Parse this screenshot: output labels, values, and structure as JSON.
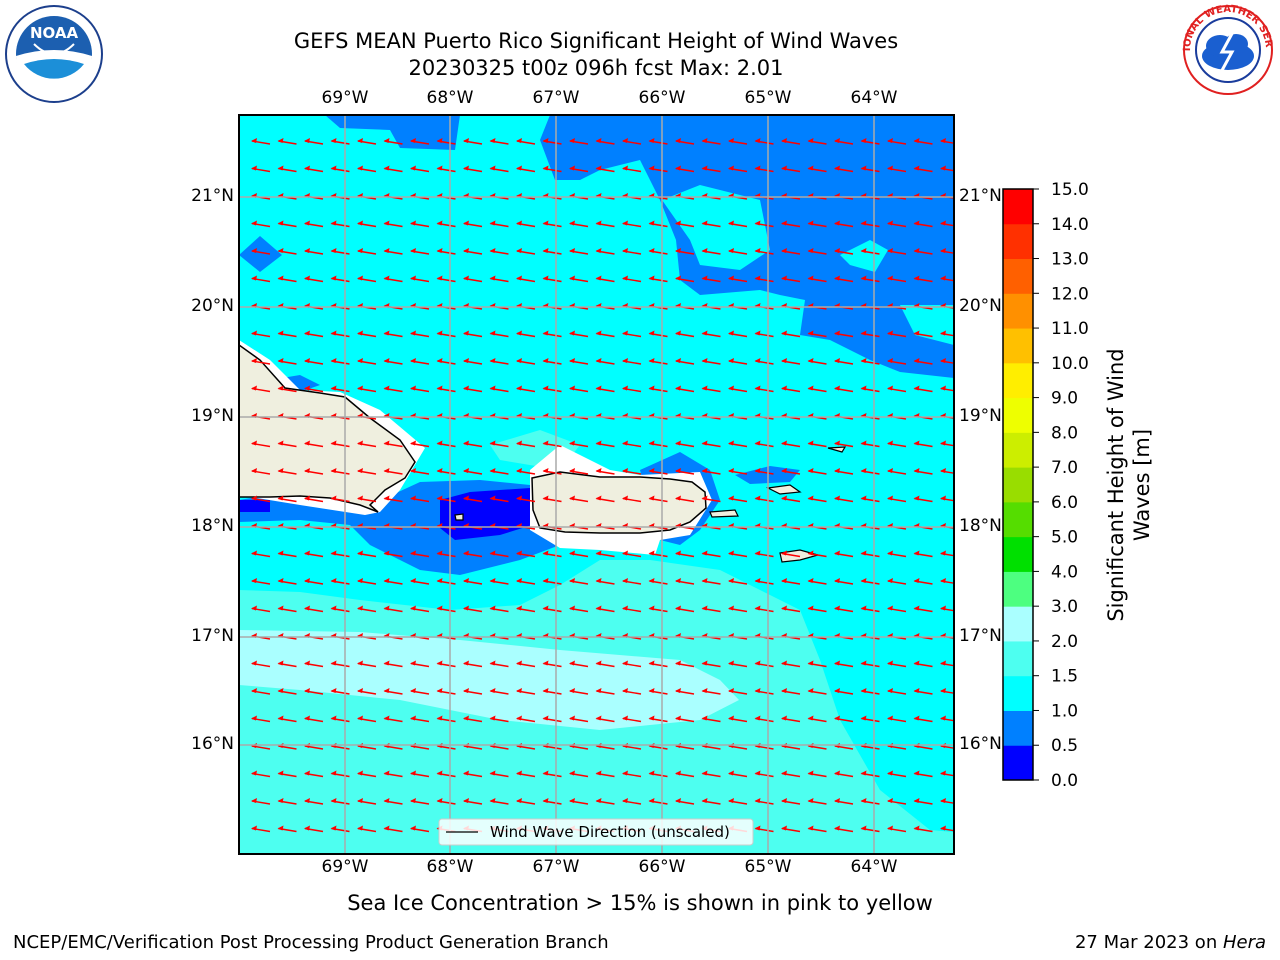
{
  "title_line1": "GEFS MEAN Puerto Rico Significant Height of Wind Waves",
  "title_line2": "20230325 t00z 096h fcst   Max: 2.01",
  "map": {
    "lon_labels": [
      "69°W",
      "68°W",
      "67°W",
      "66°W",
      "65°W",
      "64°W"
    ],
    "lat_labels": [
      "21°N",
      "20°N",
      "19°N",
      "18°N",
      "17°N",
      "16°N"
    ],
    "legend_label": "Wind Wave Direction (unscaled)",
    "arrow_color": "#ff0000",
    "fill_colors": {
      "level_0_05": "#0000ff",
      "level_05_1": "#0080ff",
      "level_1_15": "#00ffff",
      "level_15_2": "#4dfff0",
      "level_2_3": "#aaffff",
      "land": "#efefdf",
      "missing": "#ffffff"
    }
  },
  "colorbar": {
    "label_line1": "Significant Height of Wind",
    "label_line2": "Waves [m]",
    "ticks": [
      "0.0",
      "0.5",
      "1.0",
      "1.5",
      "2.0",
      "3.0",
      "4.0",
      "5.0",
      "6.0",
      "7.0",
      "8.0",
      "9.0",
      "10.0",
      "11.0",
      "12.0",
      "13.0",
      "14.0",
      "15.0"
    ],
    "colors": [
      "#0000ff",
      "#0080ff",
      "#00ffff",
      "#4dfff0",
      "#aaffff",
      "#4dff80",
      "#00e000",
      "#55dd00",
      "#99dd00",
      "#ccee00",
      "#eeff00",
      "#ffee00",
      "#ffc000",
      "#ff9000",
      "#ff6000",
      "#ff3000",
      "#ff0000"
    ]
  },
  "logos": {
    "noaa_text": "NOAA",
    "nws_text": "NATIONAL WEATHER SERVICE"
  },
  "subnote": "Sea Ice Concentration > 15% is shown in pink to yellow",
  "footer_left": "NCEP/EMC/Verification Post Processing Product Generation Branch",
  "footer_date": "27 Mar 2023 on ",
  "footer_machine": "Hera"
}
